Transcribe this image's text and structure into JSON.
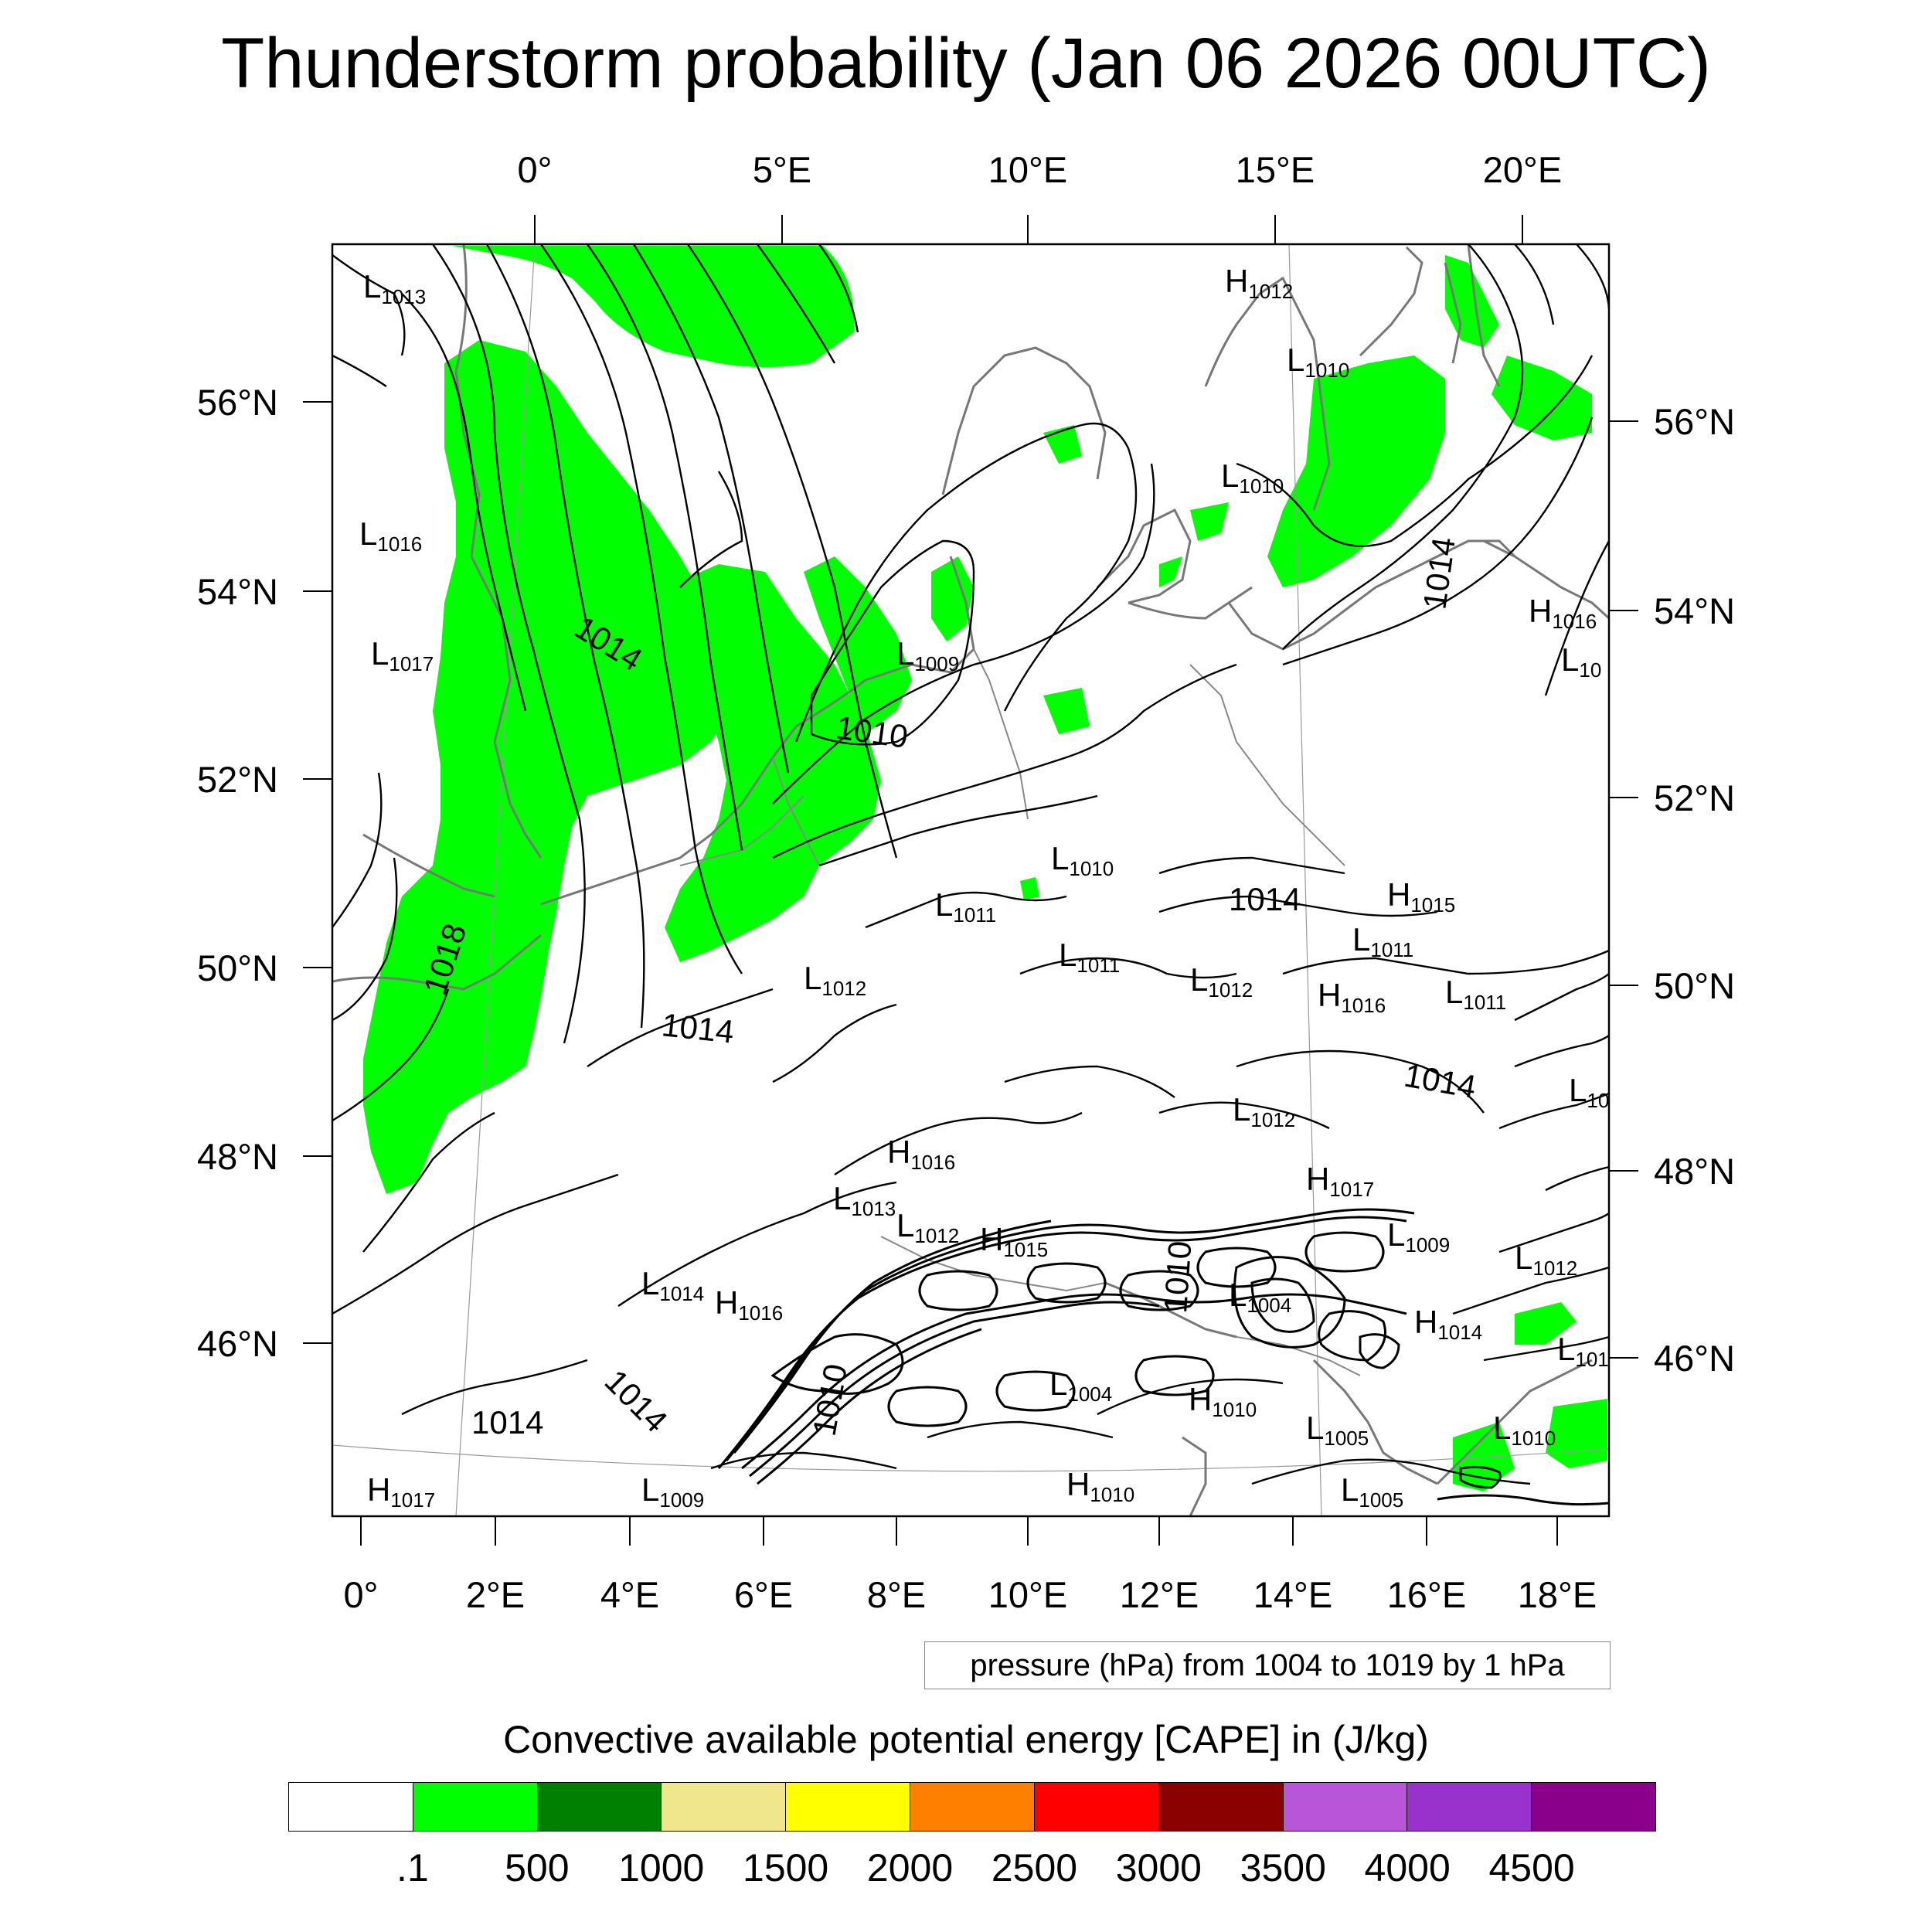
{
  "title": "Thunderstorm probability (Jan 06 2026 00UTC)",
  "top_lon_labels": [
    "0°",
    "5°E",
    "10°E",
    "15°E",
    "20°E"
  ],
  "bottom_lon_labels": [
    "0°",
    "2°E",
    "4°E",
    "6°E",
    "8°E",
    "10°E",
    "12°E",
    "14°E",
    "16°E",
    "18°E"
  ],
  "left_lat_labels": [
    "56°N",
    "54°N",
    "52°N",
    "50°N",
    "48°N",
    "46°N"
  ],
  "right_lat_labels": [
    "56°N",
    "54°N",
    "52°N",
    "50°N",
    "48°N",
    "46°N"
  ],
  "pressure_centers": [
    {
      "letter": "L",
      "value": "1013"
    },
    {
      "letter": "L",
      "value": "1016"
    },
    {
      "letter": "L",
      "value": "1017"
    },
    {
      "letter": "H",
      "value": "1012"
    },
    {
      "letter": "L",
      "value": "1010"
    },
    {
      "letter": "L",
      "value": "1010"
    },
    {
      "letter": "H",
      "value": "1016"
    },
    {
      "letter": "L",
      "value": "10"
    },
    {
      "letter": "L",
      "value": "1009"
    },
    {
      "letter": "L",
      "value": "1010"
    },
    {
      "letter": "L",
      "value": "1011"
    },
    {
      "letter": "H",
      "value": "1015"
    },
    {
      "letter": "L",
      "value": "1011"
    },
    {
      "letter": "L",
      "value": "1011"
    },
    {
      "letter": "L",
      "value": "1012"
    },
    {
      "letter": "L",
      "value": "1012"
    },
    {
      "letter": "H",
      "value": "1016"
    },
    {
      "letter": "L",
      "value": "1011"
    },
    {
      "letter": "L",
      "value": "10"
    },
    {
      "letter": "L",
      "value": "1012"
    },
    {
      "letter": "H",
      "value": "1016"
    },
    {
      "letter": "H",
      "value": "1017"
    },
    {
      "letter": "L",
      "value": "1013"
    },
    {
      "letter": "L",
      "value": "1012"
    },
    {
      "letter": "H",
      "value": "1015"
    },
    {
      "letter": "L",
      "value": "1009"
    },
    {
      "letter": "L",
      "value": "1012"
    },
    {
      "letter": "L",
      "value": "1014"
    },
    {
      "letter": "H",
      "value": "1016"
    },
    {
      "letter": "L",
      "value": "1004"
    },
    {
      "letter": "H",
      "value": "1014"
    },
    {
      "letter": "L",
      "value": "101"
    },
    {
      "letter": "L",
      "value": "1004"
    },
    {
      "letter": "H",
      "value": "1010"
    },
    {
      "letter": "L",
      "value": "1005"
    },
    {
      "letter": "L",
      "value": "1010"
    },
    {
      "letter": "H",
      "value": "1017"
    },
    {
      "letter": "L",
      "value": "1009"
    },
    {
      "letter": "H",
      "value": "1010"
    },
    {
      "letter": "L",
      "value": "1005"
    }
  ],
  "isobar_labels": [
    "1014",
    "1010",
    "1014",
    "1018",
    "1014",
    "1014",
    "1014",
    "1010",
    "1014",
    "1014",
    "1010"
  ],
  "pressure_info": "pressure (hPa) from 1004 to 1019 by 1 hPa",
  "colorbar": {
    "title": "Convective available potential energy [CAPE] in (J/kg)",
    "colors": [
      "#ffffff",
      "#00ff00",
      "#008000",
      "#f0e68c",
      "#ffff00",
      "#ff8000",
      "#ff0000",
      "#8b0000",
      "#b955d8",
      "#9932cc",
      "#8b008b"
    ],
    "labels": [
      ".1",
      "500",
      "1000",
      "1500",
      "2000",
      "2500",
      "3000",
      "3500",
      "4000",
      "4500"
    ]
  }
}
